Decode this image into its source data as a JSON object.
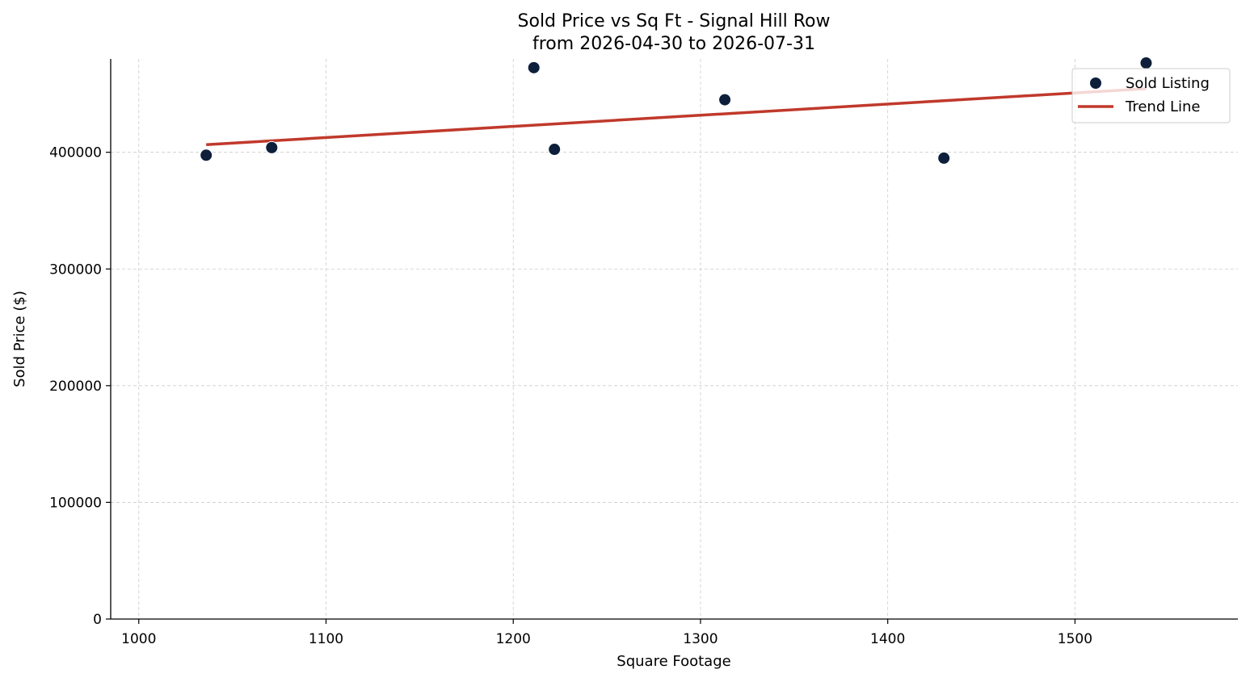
{
  "chart_data": {
    "type": "scatter",
    "title": "Sold Price vs Sq Ft - Signal Hill Row",
    "subtitle": "from 2026-04-30 to 2026-07-31",
    "xlabel": "Square Footage",
    "ylabel": "Sold Price ($)",
    "xlim": [
      985,
      1587
    ],
    "ylim": [
      0,
      480000
    ],
    "xticks": [
      "1000",
      "1100",
      "1200",
      "1300",
      "1400",
      "1500"
    ],
    "yticks": [
      "0",
      "100000",
      "200000",
      "300000",
      "400000"
    ],
    "grid": true,
    "legend_position": "top-right",
    "series": [
      {
        "name": "Sold Listing",
        "type": "scatter",
        "color": "#0d1f3a",
        "points": [
          {
            "x": 1036,
            "y": 397500
          },
          {
            "x": 1071,
            "y": 404000
          },
          {
            "x": 1211,
            "y": 472500
          },
          {
            "x": 1222,
            "y": 402500
          },
          {
            "x": 1313,
            "y": 445000
          },
          {
            "x": 1430,
            "y": 395000
          },
          {
            "x": 1538,
            "y": 476500
          }
        ]
      },
      {
        "name": "Trend Line",
        "type": "line",
        "color": "#c0392b",
        "points": [
          {
            "x": 1036,
            "y": 406500
          },
          {
            "x": 1538,
            "y": 454500
          }
        ]
      }
    ]
  }
}
